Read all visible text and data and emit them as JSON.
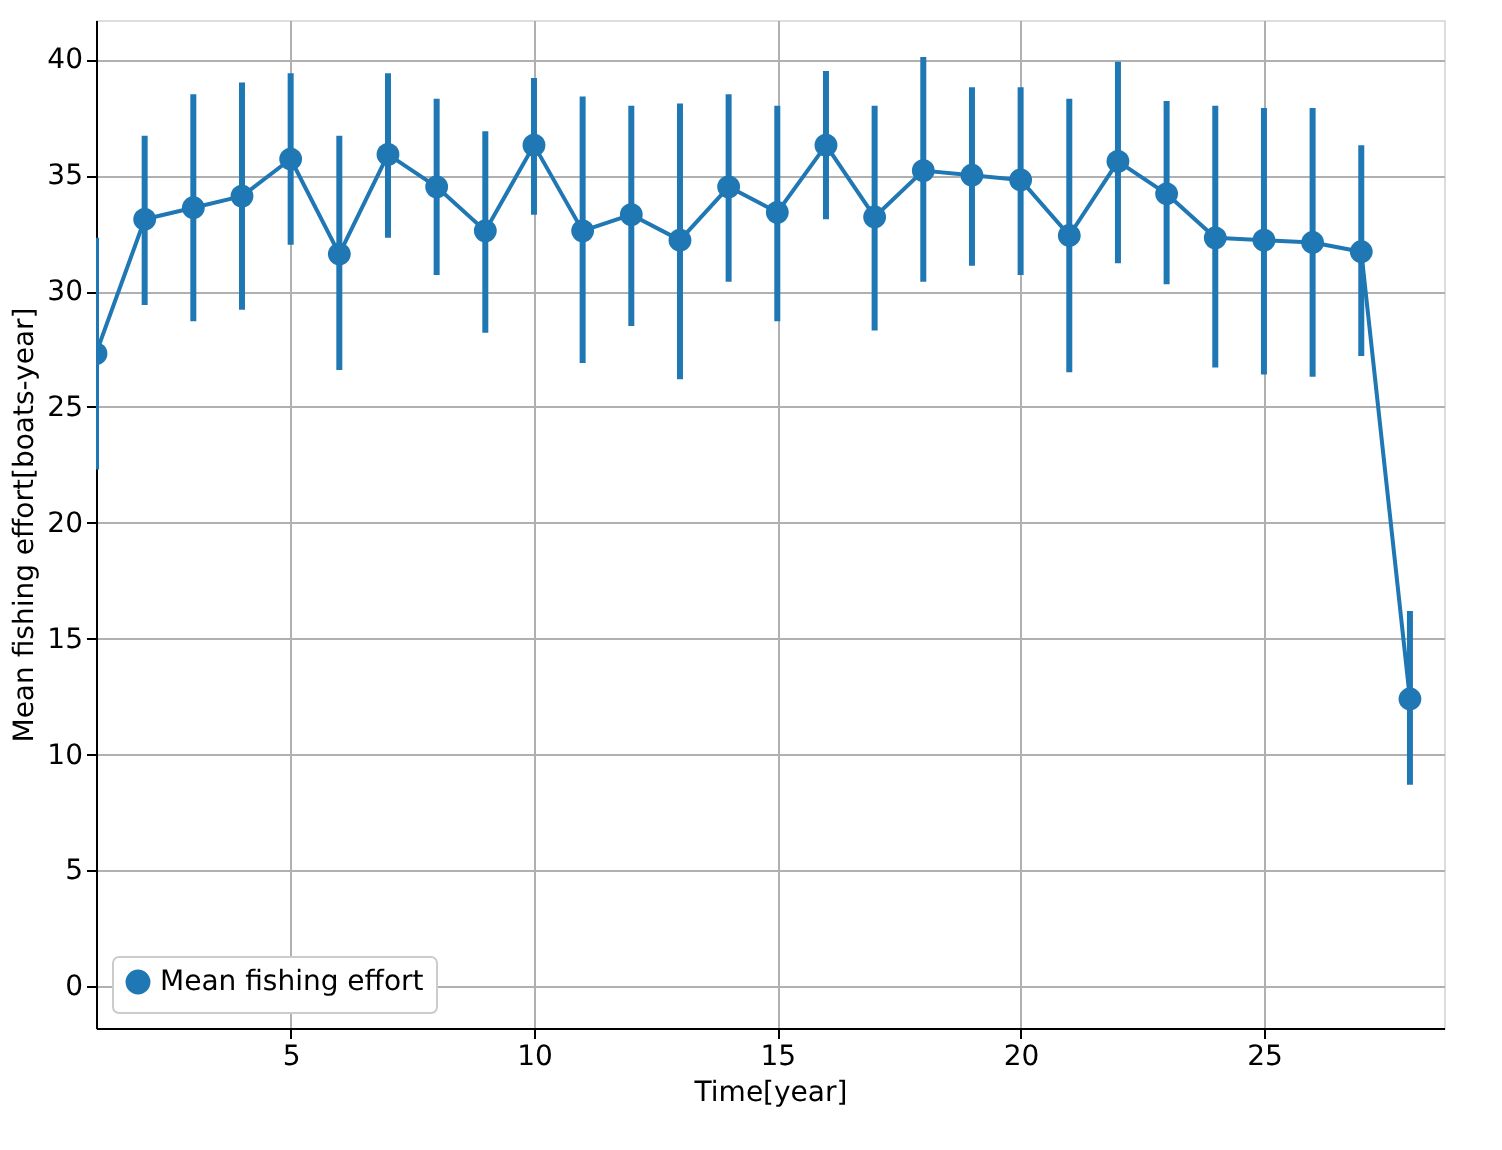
{
  "chart_data": {
    "type": "line",
    "xlabel": "Time[year]",
    "ylabel": "Mean fishing effort[boats-year]",
    "x": [
      1,
      2,
      3,
      4,
      5,
      6,
      7,
      8,
      9,
      10,
      11,
      12,
      13,
      14,
      15,
      16,
      17,
      18,
      19,
      20,
      21,
      22,
      23,
      24,
      25,
      26,
      27,
      28
    ],
    "series": [
      {
        "name": "Mean fishing effort",
        "color": "#1f77b4",
        "values": [
          27.3,
          33.1,
          33.6,
          34.1,
          35.7,
          31.6,
          35.9,
          34.5,
          32.6,
          36.3,
          32.6,
          33.3,
          32.2,
          34.5,
          33.4,
          36.3,
          33.2,
          35.2,
          35.0,
          34.8,
          32.4,
          35.6,
          34.2,
          32.3,
          32.2,
          32.1,
          31.7,
          12.4
        ],
        "errors": [
          [
            22.3,
            32.3
          ],
          [
            29.4,
            36.7
          ],
          [
            28.7,
            38.5
          ],
          [
            29.2,
            39.0
          ],
          [
            32.0,
            39.4
          ],
          [
            26.6,
            36.7
          ],
          [
            32.3,
            39.4
          ],
          [
            30.7,
            38.3
          ],
          [
            28.2,
            36.9
          ],
          [
            33.3,
            39.2
          ],
          [
            26.9,
            38.4
          ],
          [
            28.5,
            38.0
          ],
          [
            26.2,
            38.1
          ],
          [
            30.4,
            38.5
          ],
          [
            28.7,
            38.0
          ],
          [
            33.1,
            39.5
          ],
          [
            28.3,
            38.0
          ],
          [
            30.4,
            40.1
          ],
          [
            31.1,
            38.8
          ],
          [
            30.7,
            38.8
          ],
          [
            26.5,
            38.3
          ],
          [
            31.2,
            39.9
          ],
          [
            30.3,
            38.2
          ],
          [
            26.7,
            38.0
          ],
          [
            26.4,
            37.9
          ],
          [
            26.3,
            37.9
          ],
          [
            27.2,
            36.3
          ],
          [
            8.7,
            16.2
          ]
        ]
      }
    ],
    "xlim": [
      1,
      28.7
    ],
    "ylim": [
      -1.8,
      41.7
    ],
    "xticks": [
      5,
      10,
      15,
      20,
      25
    ],
    "yticks": [
      0,
      5,
      10,
      15,
      20,
      25,
      30,
      35,
      40
    ],
    "grid": true,
    "legend": "bottom left",
    "marker": "circle",
    "line_style": "solid"
  }
}
